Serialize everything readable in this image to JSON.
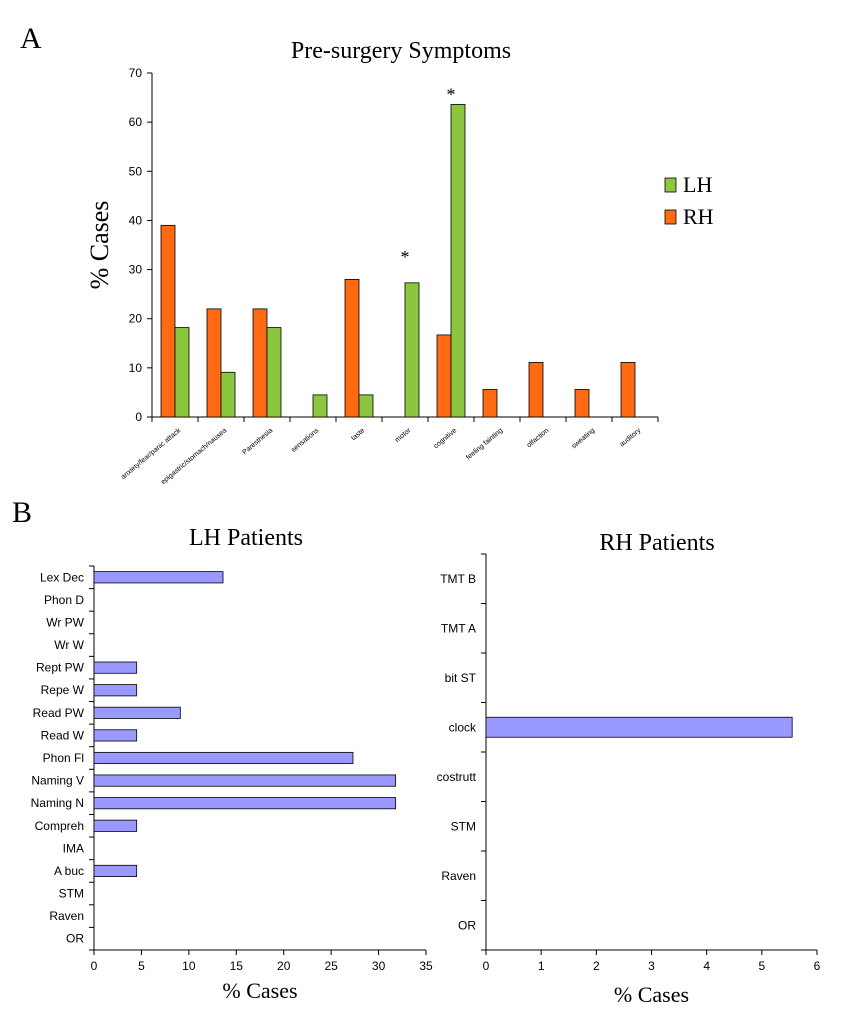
{
  "panel_labels": {
    "a": "A",
    "b": "B"
  },
  "colors": {
    "lh": "#8cc63f",
    "rh": "#ff6a13",
    "hbar": "#9999ff",
    "axis": "#000000"
  },
  "chart_data": [
    {
      "id": "A",
      "type": "bar",
      "title": "Pre-surgery Symptoms",
      "xlabel": "",
      "ylabel": "% Cases",
      "ylim": [
        0,
        70
      ],
      "yticks": [
        0,
        10,
        20,
        30,
        40,
        50,
        60,
        70
      ],
      "categories": [
        "anxiety/fear/panic attack",
        "epigastric/stomach/nausea",
        "Paresthesia",
        "sensations",
        "taste",
        "motor",
        "cognitive",
        "feeling fainting",
        "olfaction",
        "sweating",
        "auditory"
      ],
      "series": [
        {
          "name": "RH",
          "values": [
            39,
            22,
            22,
            0,
            28,
            0,
            16.7,
            5.6,
            11.1,
            5.6,
            11.1
          ]
        },
        {
          "name": "LH",
          "values": [
            18.2,
            9.1,
            18.2,
            4.5,
            4.5,
            27.3,
            63.6,
            0,
            0,
            0,
            0
          ]
        }
      ],
      "legend": [
        "LH",
        "RH"
      ],
      "annotations": [
        {
          "text": "*",
          "category": "motor",
          "value": 33
        },
        {
          "text": "*",
          "category": "cognitive",
          "value": 66
        }
      ]
    },
    {
      "id": "B-left",
      "type": "bar",
      "orientation": "horizontal",
      "title": "LH Patients",
      "xlabel": "% Cases",
      "xlim": [
        0,
        35
      ],
      "xticks": [
        0,
        5,
        10,
        15,
        20,
        25,
        30,
        35
      ],
      "categories": [
        "Lex Dec",
        "Phon D",
        "Wr PW",
        "Wr W",
        "Rept PW",
        "Repe W",
        "Read PW",
        "Read W",
        "Phon Fl",
        "Naming V",
        "Naming N",
        "Compreh",
        "IMA",
        "A buc",
        "STM",
        "Raven",
        "OR"
      ],
      "values": [
        13.6,
        0,
        0,
        0,
        4.5,
        4.5,
        9.1,
        4.5,
        27.3,
        31.8,
        31.8,
        4.5,
        0,
        4.5,
        0,
        0,
        0
      ]
    },
    {
      "id": "B-right",
      "type": "bar",
      "orientation": "horizontal",
      "title": "RH Patients",
      "xlabel": "% Cases",
      "xlim": [
        0,
        6
      ],
      "xticks": [
        0,
        1,
        2,
        3,
        4,
        5,
        6
      ],
      "categories": [
        "TMT B",
        "TMT A",
        "bit ST",
        "clock",
        "costrutt",
        "STM",
        "Raven",
        "OR"
      ],
      "values": [
        0,
        0,
        0,
        5.55,
        0,
        0,
        0,
        0
      ]
    }
  ]
}
